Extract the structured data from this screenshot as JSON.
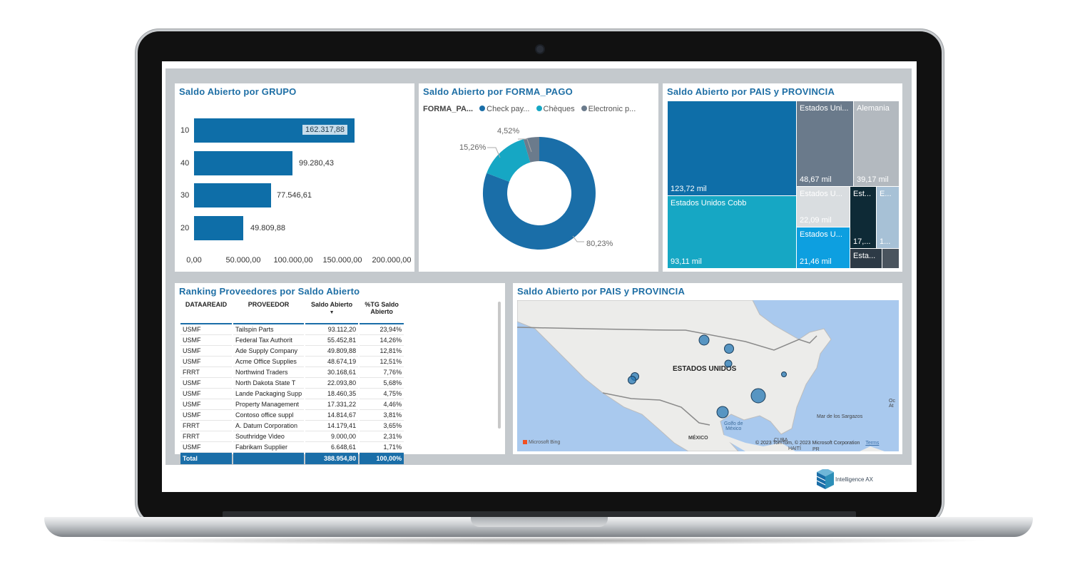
{
  "brand": {
    "name": "Intelligence AX",
    "accent": "#1f6fa5",
    "bar_color": "#0e6ea8"
  },
  "grupo_chart": {
    "title": "Saldo Abierto por GRUPO",
    "bars": [
      {
        "category": "10",
        "label": "162.317,88"
      },
      {
        "category": "40",
        "label": "99.280,43"
      },
      {
        "category": "30",
        "label": "77.546,61"
      },
      {
        "category": "20",
        "label": "49.809,88"
      }
    ],
    "xticks": [
      "0,00",
      "50.000,00",
      "100.000,00",
      "150.000,00",
      "200.000,00"
    ]
  },
  "forma_pago_chart": {
    "title": "Saldo Abierto por FORMA_PAGO",
    "legend_title": "FORMA_PA...",
    "legend": [
      {
        "name": "Check pay...",
        "color": "#1a6ea8"
      },
      {
        "name": "Chèques",
        "color": "#16a7c4"
      },
      {
        "name": "Electronic p...",
        "color": "#6b7b8c"
      }
    ],
    "labels": [
      "4,52%",
      "15,26%",
      "80,23%"
    ]
  },
  "treemap": {
    "title": "Saldo Abierto por PAIS y PROVINCIA",
    "tiles": [
      {
        "name": "",
        "value": "123,72 mil"
      },
      {
        "name": "Estados Uni...",
        "value": "48,67 mil"
      },
      {
        "name": "Alemania",
        "value": "39,17 mil"
      },
      {
        "name": "Estados Unidos Cobb",
        "value": "93,11 mil"
      },
      {
        "name": "Estados U...",
        "value": "22,09 mil"
      },
      {
        "name": "Est...",
        "value": "17,..."
      },
      {
        "name": "E...",
        "value": "1..."
      },
      {
        "name": "Estados U...",
        "value": "21,46 mil"
      },
      {
        "name": "Esta...",
        "value": ""
      }
    ]
  },
  "ranking": {
    "title": "Ranking Proveedores por Saldo Abierto",
    "columns": [
      "DATAAREAID",
      "PROVEEDOR",
      "Saldo Abierto",
      "%TG Saldo Abierto"
    ],
    "rows": [
      [
        "USMF",
        "Tailspin Parts",
        "93.112,20",
        "23,94%"
      ],
      [
        "USMF",
        "Federal Tax Authorit",
        "55.452,81",
        "14,26%"
      ],
      [
        "USMF",
        "Ade Supply Company",
        "49.809,88",
        "12,81%"
      ],
      [
        "USMF",
        "Acme Office Supplies",
        "48.674,19",
        "12,51%"
      ],
      [
        "FRRT",
        "Northwind Traders",
        "30.168,61",
        "7,76%"
      ],
      [
        "USMF",
        "North Dakota State T",
        "22.093,80",
        "5,68%"
      ],
      [
        "USMF",
        "Lande Packaging Supp",
        "18.460,35",
        "4,75%"
      ],
      [
        "USMF",
        "Property Management",
        "17.331,22",
        "4,46%"
      ],
      [
        "USMF",
        "Contoso office suppl",
        "14.814,67",
        "3,81%"
      ],
      [
        "FRRT",
        "A. Datum Corporation",
        "14.179,41",
        "3,65%"
      ],
      [
        "FRRT",
        "Southridge Video",
        "9.000,00",
        "2,31%"
      ],
      [
        "USMF",
        "Fabrikam Supplier",
        "6.648,61",
        "1,71%"
      ]
    ],
    "total": [
      "Total",
      "",
      "388.954,80",
      "100,00%"
    ]
  },
  "map": {
    "title": "Saldo Abierto por PAIS y PROVINCIA",
    "country_label": "ESTADOS UNIDOS",
    "labels": {
      "gulf": "Golfo de\nMéxico",
      "mexico": "MÉXICO",
      "cuba": "CUBA",
      "haiti": "HAITÍ",
      "pr": "PR",
      "sargazos": "Mar de los Sargazos",
      "atl": "Oc\nAt"
    },
    "attribution": "© 2023 TomTom, © 2023 Microsoft Corporation",
    "terms": "Terms",
    "provider": "Microsoft Bing"
  }
}
